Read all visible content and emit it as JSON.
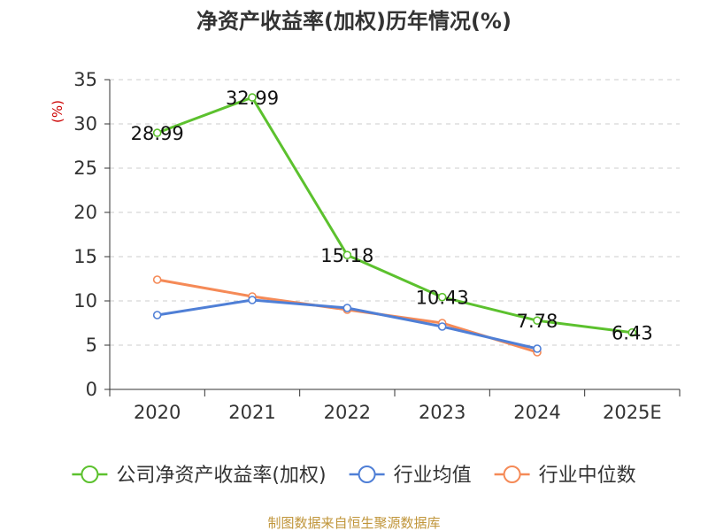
{
  "chart_data": {
    "type": "line",
    "title": "净资产收益率(加权)历年情况(%)",
    "ylabel": "(%)",
    "xlabel": "",
    "categories": [
      "2020",
      "2021",
      "2022",
      "2023",
      "2024",
      "2025E"
    ],
    "ylim": [
      0,
      35
    ],
    "yticks": [
      0,
      5,
      10,
      15,
      20,
      25,
      30,
      35
    ],
    "grid": true,
    "legend_position": "bottom",
    "series": [
      {
        "name": "公司净资产收益率(加权)",
        "color": "#5cc12e",
        "values": [
          28.99,
          32.99,
          15.18,
          10.43,
          7.78,
          6.43
        ],
        "labels": [
          "28.99",
          "32.99",
          "15.18",
          "10.43",
          "7.78",
          "6.43"
        ],
        "show_labels": true
      },
      {
        "name": "行业均值",
        "color": "#4f7fd6",
        "values": [
          8.4,
          10.1,
          9.2,
          7.1,
          4.6,
          null
        ],
        "show_labels": false
      },
      {
        "name": "行业中位数",
        "color": "#f58a57",
        "values": [
          12.4,
          10.5,
          9.0,
          7.5,
          4.2,
          null
        ],
        "show_labels": false
      }
    ]
  },
  "footer": {
    "source": "制图数据来自恒生聚源数据库"
  }
}
